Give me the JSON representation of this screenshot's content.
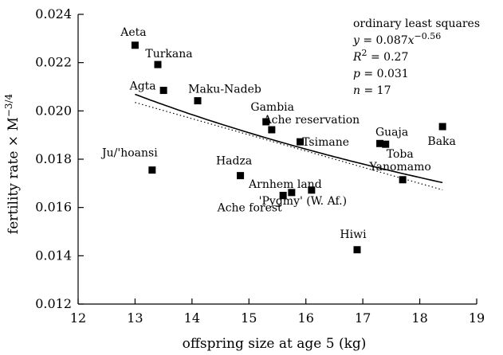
{
  "chart_data": {
    "type": "scatter",
    "xlabel": "offspring size at age 5 (kg)",
    "ylabel": "fertility rate × M",
    "ylabel_exponent": "−3/4",
    "xlim": [
      12,
      19
    ],
    "ylim": [
      0.012,
      0.024
    ],
    "x_ticks": [
      "12",
      "13",
      "14",
      "15",
      "16",
      "17",
      "18",
      "19"
    ],
    "y_ticks": [
      "0.012",
      "0.014",
      "0.016",
      "0.018",
      "0.020",
      "0.022",
      "0.024"
    ],
    "points": [
      {
        "label": "Aeta",
        "x": 13.0,
        "y": 0.02272
      },
      {
        "label": "Turkana",
        "x": 13.4,
        "y": 0.02192
      },
      {
        "label": "Agta",
        "x": 13.5,
        "y": 0.02085
      },
      {
        "label": "Maku-Nadeb",
        "x": 14.1,
        "y": 0.02042
      },
      {
        "label": "Ju/'hoansi",
        "x": 13.3,
        "y": 0.01755
      },
      {
        "label": "Gambia",
        "x": 15.3,
        "y": 0.01955
      },
      {
        "label": "Ache reservation",
        "x": 15.4,
        "y": 0.01922
      },
      {
        "label": "Tsimane",
        "x": 15.9,
        "y": 0.01872
      },
      {
        "label": "Hadza",
        "x": 14.85,
        "y": 0.01732
      },
      {
        "label": "Arnhem land",
        "x": 15.75,
        "y": 0.01662
      },
      {
        "label": "Ache forest",
        "x": 15.6,
        "y": 0.0165
      },
      {
        "label": "'Pygmy' (W. Af.)",
        "x": 16.1,
        "y": 0.01672
      },
      {
        "label": "Guaja",
        "x": 17.3,
        "y": 0.01865
      },
      {
        "label": "Toba",
        "x": 17.4,
        "y": 0.01862
      },
      {
        "label": "Baka",
        "x": 18.4,
        "y": 0.01935
      },
      {
        "label": "Yanomamo",
        "x": 17.7,
        "y": 0.01715
      },
      {
        "label": "Hiwi",
        "x": 16.9,
        "y": 0.01425
      }
    ],
    "fits": [
      {
        "kind": "power",
        "coefficient": 0.087,
        "exponent": -0.56,
        "style": "solid",
        "x_range": [
          13.0,
          18.4
        ]
      },
      {
        "kind": "linear",
        "style": "dotted",
        "from": [
          13.0,
          0.02035
        ],
        "to": [
          18.4,
          0.01673
        ]
      }
    ],
    "annotation": {
      "method": "ordinary least squares",
      "equation_prefix": "y",
      "equation_mid": " = 0.087",
      "equation_var": "x",
      "equation_exponent": "−0.56",
      "r2_prefix": "R",
      "r2_exp": "2",
      "r2_value": " = 0.27",
      "p_prefix": "p",
      "p_value": " = 0.031",
      "n_prefix": "n",
      "n_value": " = 17"
    }
  }
}
